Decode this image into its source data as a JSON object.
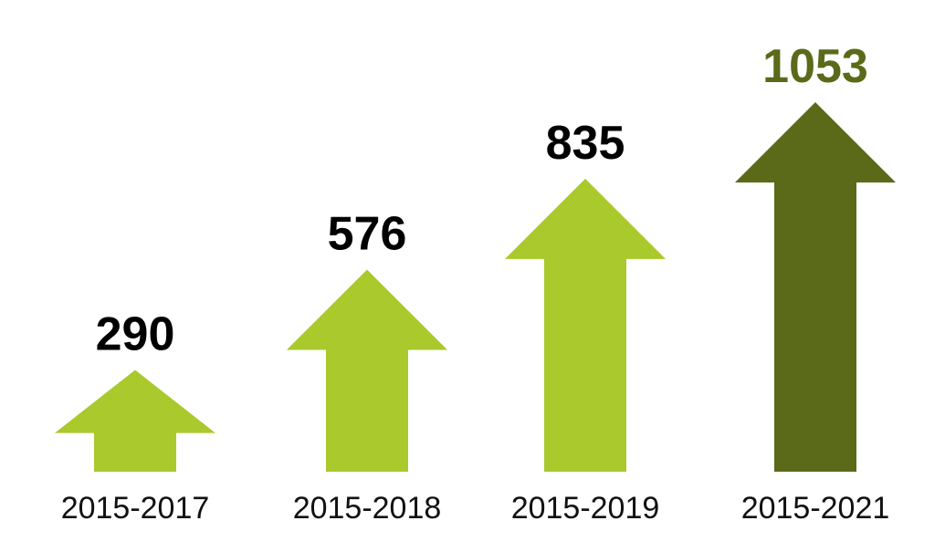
{
  "chart_data": {
    "type": "bar",
    "categories": [
      "2015-2017",
      "2015-2018",
      "2015-2019",
      "2015-2021"
    ],
    "values": [
      290,
      576,
      835,
      1053
    ],
    "value_labels": [
      "290",
      "576",
      "835",
      "1053"
    ],
    "bar_shape": "up-arrow",
    "colors": {
      "default_arrow": "#a9c92c",
      "highlight_arrow": "#5a6a18",
      "default_label": "#000000",
      "highlight_label": "#5a6a18"
    },
    "highlight_index": 3,
    "grid": false,
    "legend": "none"
  }
}
